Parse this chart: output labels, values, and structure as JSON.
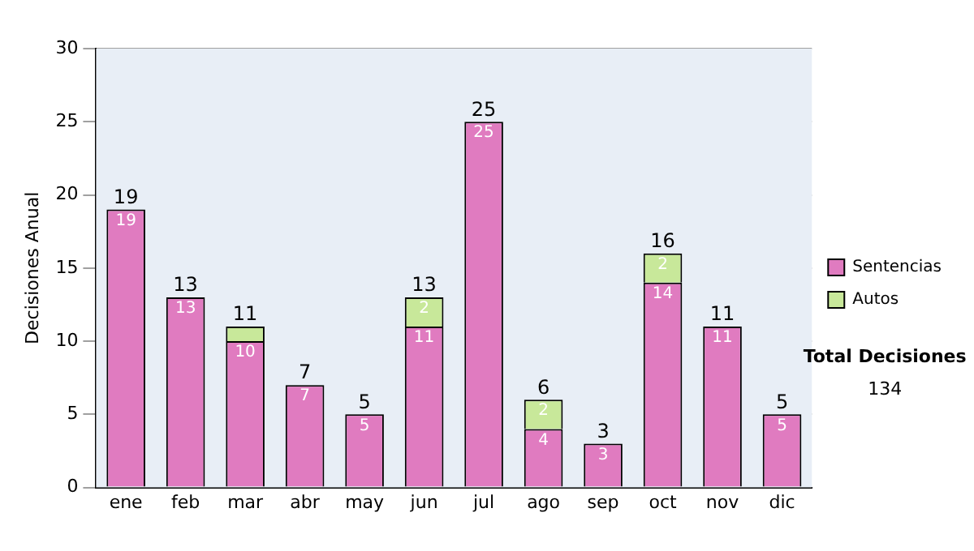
{
  "chart_data": {
    "type": "bar",
    "stacked": true,
    "ylabel": "Decisiones Anual",
    "categories": [
      "ene",
      "feb",
      "mar",
      "abr",
      "may",
      "jun",
      "jul",
      "ago",
      "sep",
      "oct",
      "nov",
      "dic"
    ],
    "series": [
      {
        "name": "Sentencias",
        "color": "#e07bc0",
        "values": [
          19,
          13,
          10,
          7,
          5,
          11,
          25,
          4,
          3,
          14,
          11,
          5
        ],
        "value_labels": [
          "19",
          "13",
          "10",
          "7",
          "5",
          "11",
          "25",
          "4",
          "3",
          "14",
          "11",
          "5"
        ]
      },
      {
        "name": "Autos",
        "color": "#c8e89a",
        "values": [
          null,
          null,
          1,
          null,
          null,
          2,
          null,
          2,
          null,
          2,
          null,
          null
        ],
        "value_labels": [
          null,
          null,
          null,
          null,
          null,
          "2",
          null,
          "2",
          null,
          "2",
          null,
          null
        ]
      }
    ],
    "totals": [
      "19",
      "13",
      "11",
      "7",
      "5",
      "13",
      "25",
      "6",
      "3",
      "16",
      "11",
      "5"
    ],
    "ylim": [
      0,
      30
    ],
    "yticks": [
      0,
      5,
      10,
      15,
      20,
      25,
      30
    ],
    "grid": "y",
    "legend": "right",
    "annotations": [
      "Total Decisiones",
      "134"
    ]
  }
}
